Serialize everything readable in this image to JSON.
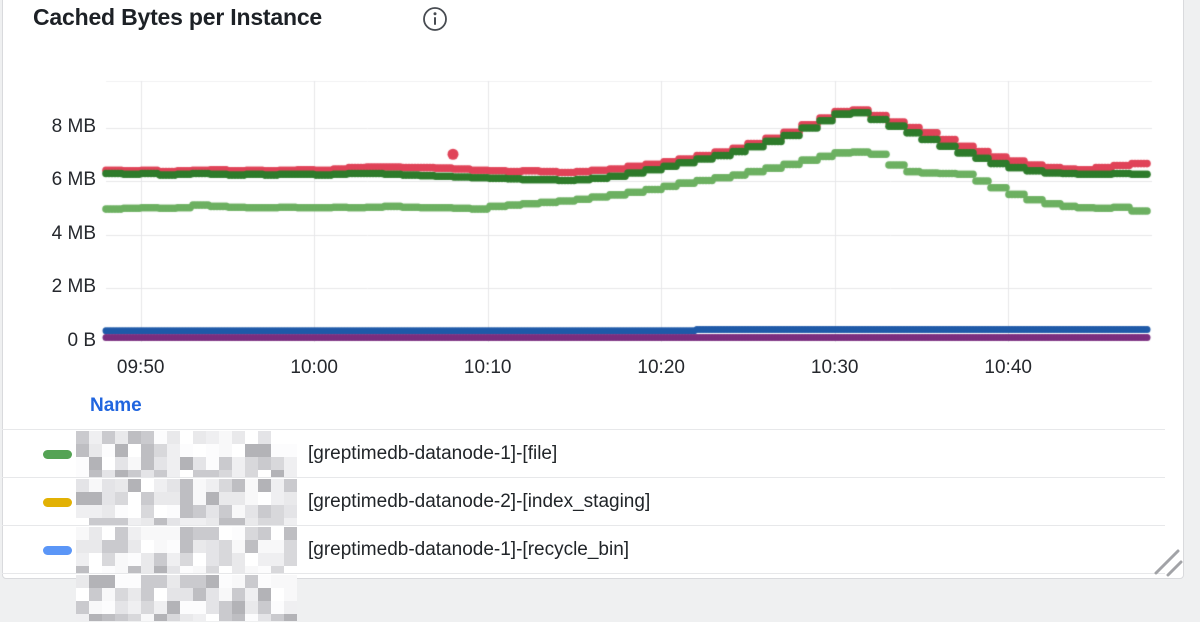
{
  "panel": {
    "title": "Cached Bytes per Instance"
  },
  "chart_data": {
    "type": "scatter",
    "title": "Cached Bytes per Instance",
    "x_start_time": "09:48",
    "x_interval_minutes": 1,
    "x_axis": {
      "tick_labels": [
        "09:50",
        "10:00",
        "10:10",
        "10:20",
        "10:30",
        "10:40"
      ],
      "tick_minutes_from_start": [
        2,
        12,
        22,
        32,
        42,
        52
      ]
    },
    "y_axis": {
      "tick_labels": [
        "0 B",
        "2 MB",
        "4 MB",
        "6 MB",
        "8 MB"
      ],
      "tick_values_mb": [
        0,
        2,
        4,
        6,
        8
      ],
      "range_mb": [
        0,
        9.75
      ]
    },
    "grid": true,
    "legend_position": "bottom-table",
    "series": [
      {
        "name": "red-series",
        "color": "#E04358",
        "values_mb": [
          6.4,
          6.38,
          6.4,
          6.35,
          6.38,
          6.4,
          6.42,
          6.38,
          6.4,
          6.38,
          6.4,
          6.42,
          6.4,
          6.45,
          6.5,
          6.52,
          6.52,
          6.5,
          6.5,
          6.48,
          6.45,
          6.4,
          6.38,
          6.35,
          6.38,
          6.35,
          6.32,
          6.35,
          6.4,
          6.45,
          6.55,
          6.62,
          6.72,
          6.82,
          6.95,
          7.08,
          7.22,
          7.4,
          7.6,
          7.82,
          8.1,
          8.35,
          8.6,
          8.65,
          8.45,
          8.2,
          8.0,
          7.8,
          7.55,
          7.3,
          7.1,
          6.9,
          6.75,
          6.6,
          6.5,
          6.45,
          6.42,
          6.5,
          6.58,
          6.65,
          6.68
        ]
      },
      {
        "name": "dark-green-series",
        "color": "#2E7B2B",
        "values_mb": [
          6.28,
          6.25,
          6.28,
          6.22,
          6.25,
          6.28,
          6.25,
          6.22,
          6.25,
          6.22,
          6.25,
          6.25,
          6.22,
          6.25,
          6.28,
          6.28,
          6.25,
          6.22,
          6.2,
          6.18,
          6.15,
          6.12,
          6.1,
          6.08,
          6.05,
          6.05,
          6.02,
          6.05,
          6.1,
          6.18,
          6.3,
          6.42,
          6.55,
          6.68,
          6.82,
          6.95,
          7.1,
          7.28,
          7.48,
          7.7,
          7.98,
          8.25,
          8.5,
          8.55,
          8.3,
          8.05,
          7.8,
          7.55,
          7.3,
          7.05,
          6.85,
          6.65,
          6.5,
          6.38,
          6.3,
          6.28,
          6.25,
          6.25,
          6.28,
          6.25,
          6.22
        ]
      },
      {
        "name": "light-green-series",
        "color": "#6CB061",
        "values_mb": [
          4.95,
          4.98,
          5.0,
          4.98,
          5.0,
          5.1,
          5.05,
          5.02,
          5.0,
          5.0,
          5.02,
          5.0,
          5.0,
          5.02,
          5.0,
          5.02,
          5.05,
          5.02,
          5.0,
          5.0,
          4.98,
          4.95,
          5.05,
          5.1,
          5.15,
          5.2,
          5.25,
          5.32,
          5.4,
          5.48,
          5.58,
          5.68,
          5.8,
          5.92,
          6.02,
          6.12,
          6.22,
          6.35,
          6.48,
          6.62,
          6.78,
          6.92,
          7.05,
          7.08,
          7.0,
          6.6,
          6.35,
          6.3,
          6.28,
          6.25,
          6.0,
          5.75,
          5.5,
          5.3,
          5.15,
          5.05,
          5.0,
          4.98,
          5.02,
          4.88,
          4.85
        ]
      },
      {
        "name": "navy-blue-series",
        "color": "#1F5AA8",
        "values_mb": [
          0.4,
          0.4,
          0.4,
          0.4,
          0.4,
          0.4,
          0.4,
          0.4,
          0.4,
          0.4,
          0.4,
          0.4,
          0.4,
          0.4,
          0.4,
          0.4,
          0.4,
          0.4,
          0.4,
          0.4,
          0.4,
          0.4,
          0.4,
          0.4,
          0.4,
          0.4,
          0.4,
          0.4,
          0.4,
          0.4,
          0.4,
          0.4,
          0.4,
          0.4,
          0.45,
          0.45,
          0.45,
          0.45,
          0.45,
          0.45,
          0.45,
          0.45,
          0.45,
          0.45,
          0.45,
          0.45,
          0.45,
          0.45,
          0.45,
          0.45,
          0.45,
          0.45,
          0.45,
          0.45,
          0.45,
          0.45,
          0.45,
          0.45,
          0.45,
          0.45,
          0.45
        ]
      },
      {
        "name": "purple-series",
        "color": "#7A2E7F",
        "values_mb": [
          0.15,
          0.15,
          0.15,
          0.15,
          0.15,
          0.15,
          0.15,
          0.15,
          0.15,
          0.15,
          0.15,
          0.15,
          0.15,
          0.15,
          0.15,
          0.15,
          0.15,
          0.15,
          0.15,
          0.15,
          0.15,
          0.15,
          0.15,
          0.15,
          0.15,
          0.15,
          0.15,
          0.15,
          0.15,
          0.15,
          0.15,
          0.15,
          0.15,
          0.15,
          0.15,
          0.15,
          0.15,
          0.15,
          0.15,
          0.15,
          0.15,
          0.15,
          0.15,
          0.15,
          0.15,
          0.15,
          0.15,
          0.15,
          0.15,
          0.15,
          0.15,
          0.15,
          0.15,
          0.15,
          0.15,
          0.15,
          0.15,
          0.15,
          0.15,
          0.15,
          0.15
        ]
      }
    ],
    "outlier_point": {
      "series": "red-series",
      "minute_from_start": 20,
      "value_mb": 7.0
    }
  },
  "legend": {
    "name_header": "Name",
    "rows": [
      {
        "color": "#54A354",
        "redacted_prefix": true,
        "label": "[greptimedb-datanode-1]-[file]"
      },
      {
        "color": "#E2B104",
        "redacted_prefix": true,
        "label": "[greptimedb-datanode-2]-[index_staging]"
      },
      {
        "color": "#5B96F7",
        "redacted_prefix": true,
        "label": "[greptimedb-datanode-1]-[recycle_bin]"
      },
      {
        "color": "",
        "redacted_prefix": true,
        "label": ""
      }
    ]
  }
}
